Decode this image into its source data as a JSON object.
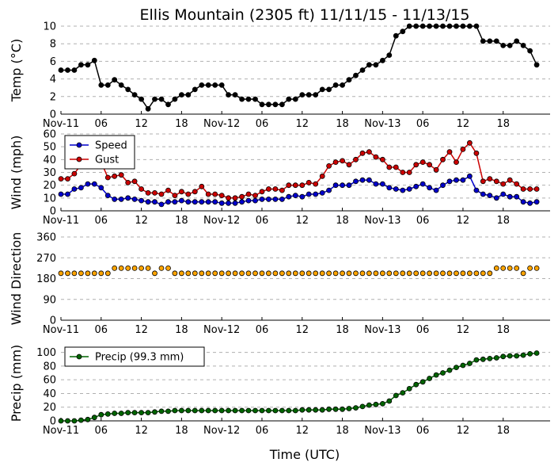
{
  "title": "Ellis Mountain (2305 ft) 11/11/15 - 11/13/15",
  "xlabel": "Time (UTC)",
  "x_tick_labels": [
    "Nov-11",
    "06",
    "12",
    "18",
    "Nov-12",
    "06",
    "12",
    "18",
    "Nov-13",
    "06",
    "12",
    "18"
  ],
  "x_tick_hours": [
    0,
    6,
    12,
    18,
    24,
    30,
    36,
    42,
    48,
    54,
    60,
    66
  ],
  "chart_data": [
    {
      "type": "line",
      "ylabel": "Temp (°C)",
      "ylim": [
        0,
        10
      ],
      "yticks": [
        0,
        2,
        4,
        6,
        8,
        10
      ],
      "grid": true,
      "x_hours": [
        0,
        1,
        2,
        3,
        4,
        5,
        6,
        7,
        8,
        9,
        10,
        11,
        12,
        13,
        14,
        15,
        16,
        17,
        18,
        19,
        20,
        21,
        22,
        23,
        24,
        25,
        26,
        27,
        28,
        29,
        30,
        31,
        32,
        33,
        34,
        35,
        36,
        37,
        38,
        39,
        40,
        41,
        42,
        43,
        44,
        45,
        46,
        47,
        48,
        49,
        50,
        51,
        52,
        53,
        54,
        55,
        56,
        57,
        58,
        59,
        60,
        61,
        62,
        63,
        64,
        65,
        66,
        67,
        68,
        69,
        70,
        71
      ],
      "series": [
        {
          "color": "#000000",
          "values": [
            5,
            5,
            5,
            5.6,
            5.6,
            6.1,
            3.3,
            3.3,
            3.9,
            3.3,
            2.8,
            2.2,
            1.7,
            0.6,
            1.7,
            1.7,
            1.1,
            1.7,
            2.2,
            2.2,
            2.8,
            3.3,
            3.3,
            3.3,
            3.3,
            2.2,
            2.2,
            1.7,
            1.7,
            1.7,
            1.1,
            1.1,
            1.1,
            1.1,
            1.7,
            1.7,
            2.2,
            2.2,
            2.2,
            2.8,
            2.8,
            3.3,
            3.3,
            3.9,
            4.4,
            5,
            5.6,
            5.6,
            6.1,
            6.7,
            8.9,
            9.4,
            10,
            10,
            10,
            10,
            10,
            10,
            10,
            10,
            10,
            10,
            10,
            8.3,
            8.3,
            8.3,
            7.8,
            7.8,
            8.3,
            7.8,
            7.2,
            5.6
          ]
        }
      ]
    },
    {
      "type": "line",
      "ylabel": "Wind (mph)",
      "ylim": [
        0,
        60
      ],
      "yticks": [
        0,
        10,
        20,
        30,
        40,
        50,
        60
      ],
      "grid": true,
      "legend": "top-left",
      "x_hours": [
        0,
        1,
        2,
        3,
        4,
        5,
        6,
        7,
        8,
        9,
        10,
        11,
        12,
        13,
        14,
        15,
        16,
        17,
        18,
        19,
        20,
        21,
        22,
        23,
        24,
        25,
        26,
        27,
        28,
        29,
        30,
        31,
        32,
        33,
        34,
        35,
        36,
        37,
        38,
        39,
        40,
        41,
        42,
        43,
        44,
        45,
        46,
        47,
        48,
        49,
        50,
        51,
        52,
        53,
        54,
        55,
        56,
        57,
        58,
        59,
        60,
        61,
        62,
        63,
        64,
        65,
        66,
        67,
        68,
        69,
        70,
        71
      ],
      "series": [
        {
          "name": "Speed",
          "color": "#0000cc",
          "values": [
            13,
            13,
            17,
            18,
            21,
            21,
            18,
            12,
            9,
            9,
            10,
            9,
            8,
            7,
            7,
            5,
            7,
            7,
            8,
            7,
            7,
            7,
            7,
            7,
            6,
            6,
            6,
            7,
            8,
            8,
            9,
            9,
            9,
            9,
            11,
            12,
            11,
            13,
            13,
            14,
            16,
            20,
            20,
            20,
            23,
            24,
            24,
            21,
            21,
            18,
            17,
            16,
            17,
            19,
            21,
            18,
            16,
            20,
            23,
            24,
            24,
            27,
            16,
            13,
            12,
            10,
            13,
            11,
            11,
            7,
            6,
            7
          ]
        },
        {
          "name": "Gust",
          "color": "#cc0000",
          "values": [
            25,
            25,
            29,
            36,
            36,
            37,
            38,
            26,
            27,
            28,
            22,
            23,
            17,
            14,
            14,
            13,
            16,
            12,
            15,
            13,
            15,
            19,
            13,
            13,
            12,
            10,
            10,
            11,
            13,
            12,
            15,
            17,
            17,
            16,
            20,
            20,
            20,
            22,
            21,
            27,
            35,
            38,
            39,
            36,
            40,
            45,
            46,
            42,
            40,
            34,
            34,
            30,
            30,
            36,
            38,
            36,
            32,
            40,
            46,
            38,
            48,
            53,
            45,
            23,
            25,
            23,
            21,
            24,
            21,
            17,
            17,
            17
          ]
        }
      ]
    },
    {
      "type": "scatter",
      "ylabel": "Wind Direction",
      "ylim": [
        0,
        360
      ],
      "yticks": [
        0,
        90,
        180,
        270,
        360
      ],
      "grid": true,
      "x_hours": [
        0,
        1,
        2,
        3,
        4,
        5,
        6,
        7,
        8,
        9,
        10,
        11,
        12,
        13,
        14,
        15,
        16,
        17,
        18,
        19,
        20,
        21,
        22,
        23,
        24,
        25,
        26,
        27,
        28,
        29,
        30,
        31,
        32,
        33,
        34,
        35,
        36,
        37,
        38,
        39,
        40,
        41,
        42,
        43,
        44,
        45,
        46,
        47,
        48,
        49,
        50,
        51,
        52,
        53,
        54,
        55,
        56,
        57,
        58,
        59,
        60,
        61,
        62,
        63,
        64,
        65,
        66,
        67,
        68,
        69,
        70,
        71
      ],
      "series": [
        {
          "color": "#ffa500",
          "values": [
            203,
            203,
            203,
            203,
            203,
            203,
            203,
            203,
            225,
            225,
            225,
            225,
            225,
            225,
            203,
            225,
            225,
            203,
            203,
            203,
            203,
            203,
            203,
            203,
            203,
            203,
            203,
            203,
            203,
            203,
            203,
            203,
            203,
            203,
            203,
            203,
            203,
            203,
            203,
            203,
            203,
            203,
            203,
            203,
            203,
            203,
            203,
            203,
            203,
            203,
            203,
            203,
            203,
            203,
            203,
            203,
            203,
            203,
            203,
            203,
            203,
            203,
            203,
            203,
            203,
            225,
            225,
            225,
            225,
            203,
            225,
            225
          ]
        }
      ]
    },
    {
      "type": "line",
      "ylabel": "Precip (mm)",
      "ylim": [
        0,
        110
      ],
      "yticks": [
        0,
        20,
        40,
        60,
        80,
        100
      ],
      "grid": true,
      "legend": "top-left",
      "x_hours": [
        0,
        1,
        2,
        3,
        4,
        5,
        6,
        7,
        8,
        9,
        10,
        11,
        12,
        13,
        14,
        15,
        16,
        17,
        18,
        19,
        20,
        21,
        22,
        23,
        24,
        25,
        26,
        27,
        28,
        29,
        30,
        31,
        32,
        33,
        34,
        35,
        36,
        37,
        38,
        39,
        40,
        41,
        42,
        43,
        44,
        45,
        46,
        47,
        48,
        49,
        50,
        51,
        52,
        53,
        54,
        55,
        56,
        57,
        58,
        59,
        60,
        61,
        62,
        63,
        64,
        65,
        66,
        67,
        68,
        69,
        70,
        71
      ],
      "series": [
        {
          "name": "Precip (99.3 mm)",
          "color": "#006400",
          "values": [
            0,
            0,
            0,
            1,
            2,
            5,
            9,
            10,
            11,
            11,
            12,
            12,
            12,
            12,
            13,
            14,
            14,
            15,
            15,
            15,
            15,
            15,
            15,
            15,
            15,
            15,
            15,
            15,
            15,
            15,
            15,
            15,
            15,
            15,
            15,
            15,
            16,
            16,
            16,
            16,
            17,
            17,
            17,
            18,
            19,
            21,
            23,
            24,
            25,
            29,
            37,
            41,
            47,
            53,
            57,
            62,
            67,
            70,
            74,
            78,
            81,
            84,
            89,
            90,
            91,
            92,
            94,
            95,
            95,
            96,
            98,
            99
          ]
        }
      ]
    }
  ]
}
